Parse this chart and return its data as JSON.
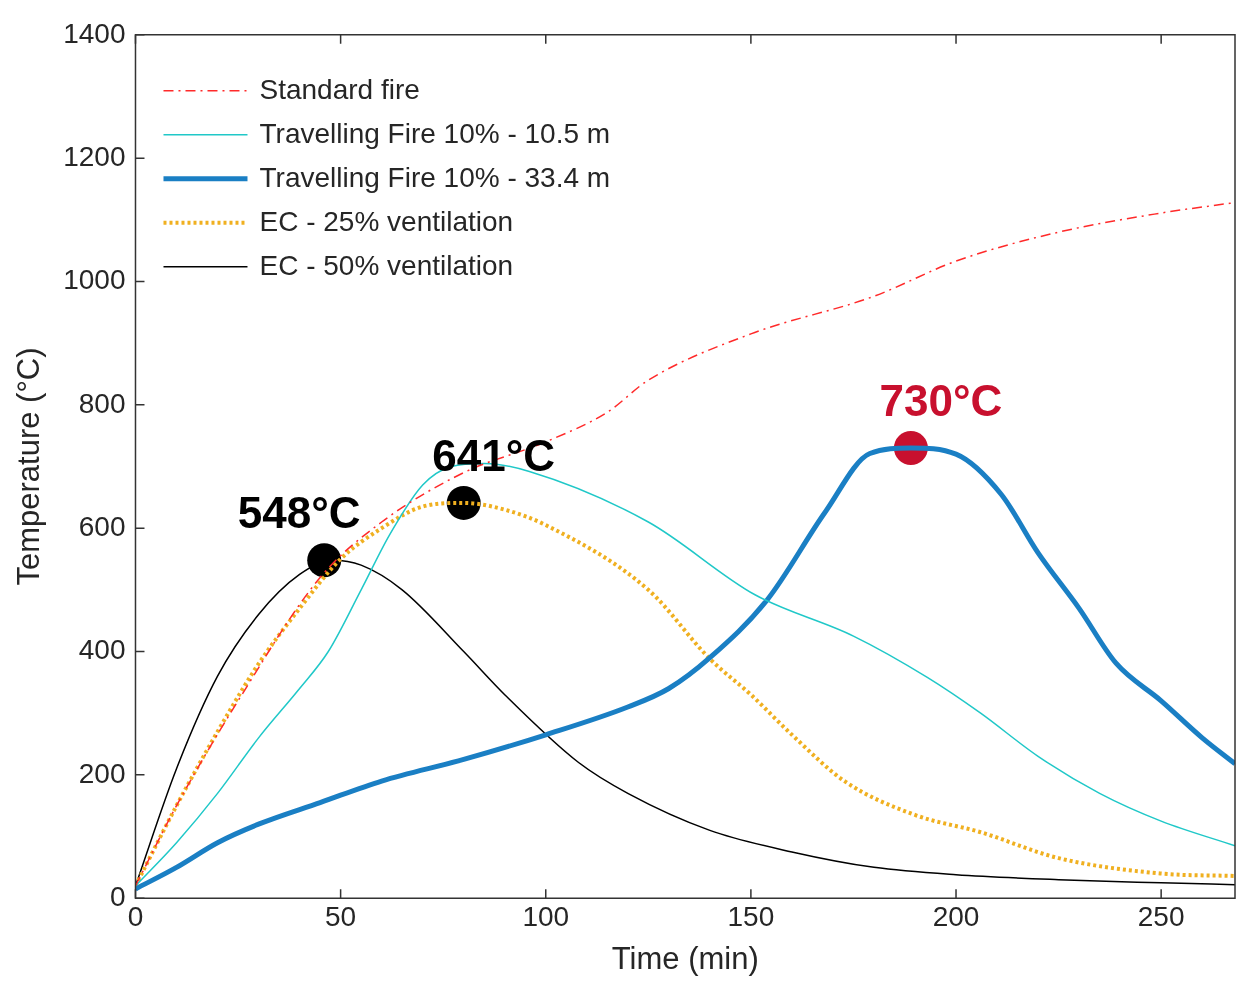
{
  "chart_data": {
    "type": "line",
    "xlabel": "Time (min)",
    "ylabel": "Temperature (°C)",
    "xlim": [
      0,
      268
    ],
    "xticks": [
      0,
      50,
      100,
      150,
      200,
      250
    ],
    "ylim": [
      0,
      1400
    ],
    "yticks": [
      0,
      200,
      400,
      600,
      800,
      1000,
      1200,
      1400
    ],
    "grid": false,
    "legend": "top left",
    "marker": "none",
    "series": [
      {
        "name": "Standard fire",
        "color": "#ff2a2a",
        "line_style": "dashed",
        "x": [
          0,
          10,
          25,
          45,
          60,
          80,
          100,
          115,
          125,
          150,
          180,
          200,
          225,
          250,
          268
        ],
        "values": [
          20,
          150,
          320,
          520,
          610,
          690,
          740,
          788,
          840,
          915,
          976,
          1033,
          1080,
          1111,
          1128
        ]
      },
      {
        "name": "Travelling Fire 10% - 10.5 m",
        "color": "#20c8c8",
        "line_style": "solid",
        "x": [
          0,
          10,
          20,
          30,
          40,
          47,
          55,
          62,
          70,
          77,
          85,
          96,
          125,
          151,
          175,
          193,
          206,
          220,
          235,
          250,
          268
        ],
        "values": [
          20,
          90,
          170,
          260,
          340,
          400,
          500,
          590,
          670,
          700,
          705,
          692,
          610,
          492,
          425,
          358,
          300,
          230,
          170,
          125,
          85
        ]
      },
      {
        "name": "Travelling Fire 10% - 33.4 m",
        "color": "#1a7fc4",
        "line_style": "solid",
        "x": [
          0,
          10,
          20,
          30,
          45,
          60,
          80,
          100,
          120,
          130,
          140,
          154,
          168,
          179,
          189,
          200,
          211,
          220,
          230,
          239,
          250,
          260,
          268
        ],
        "values": [
          15,
          50,
          90,
          120,
          155,
          190,
          225,
          265,
          310,
          340,
          390,
          484,
          625,
          721,
          730,
          720,
          655,
          560,
          470,
          381,
          320,
          260,
          218
        ]
      },
      {
        "name": "EC - 25% ventilation",
        "color": "#f0b020",
        "line_style": "dotted",
        "x": [
          0,
          10,
          20,
          30,
          40,
          50,
          60,
          70,
          80,
          90,
          100,
          125,
          140,
          150,
          160,
          173,
          190,
          206,
          225,
          250,
          268
        ],
        "values": [
          20,
          150,
          270,
          380,
          470,
          550,
          600,
          635,
          641,
          630,
          605,
          500,
          388,
          330,
          265,
          189,
          135,
          107,
          65,
          40,
          36
        ]
      },
      {
        "name": "EC - 50% ventilation",
        "color": "#000000",
        "line_style": "solid",
        "x": [
          0,
          10,
          20,
          30,
          40,
          48,
          55,
          65,
          80,
          90,
          108,
          120,
          140,
          160,
          180,
          200,
          225,
          250,
          268
        ],
        "values": [
          20,
          210,
          360,
          460,
          525,
          548,
          540,
          500,
          400,
          330,
          220,
          170,
          110,
          75,
          50,
          38,
          30,
          25,
          22
        ]
      },
      {
        "type": "scatter",
        "marker": "circle",
        "colors": [
          "#000000",
          "#000000",
          "#c8102e"
        ],
        "x": [
          46,
          80,
          189
        ],
        "values": [
          548,
          641,
          730
        ]
      }
    ],
    "annotations": [
      {
        "text": "548°C",
        "x": 46,
        "y": 548
      },
      {
        "text": "641°C",
        "x": 80,
        "y": 641
      },
      {
        "text": "730°C",
        "x": 189,
        "y": 730
      }
    ]
  }
}
